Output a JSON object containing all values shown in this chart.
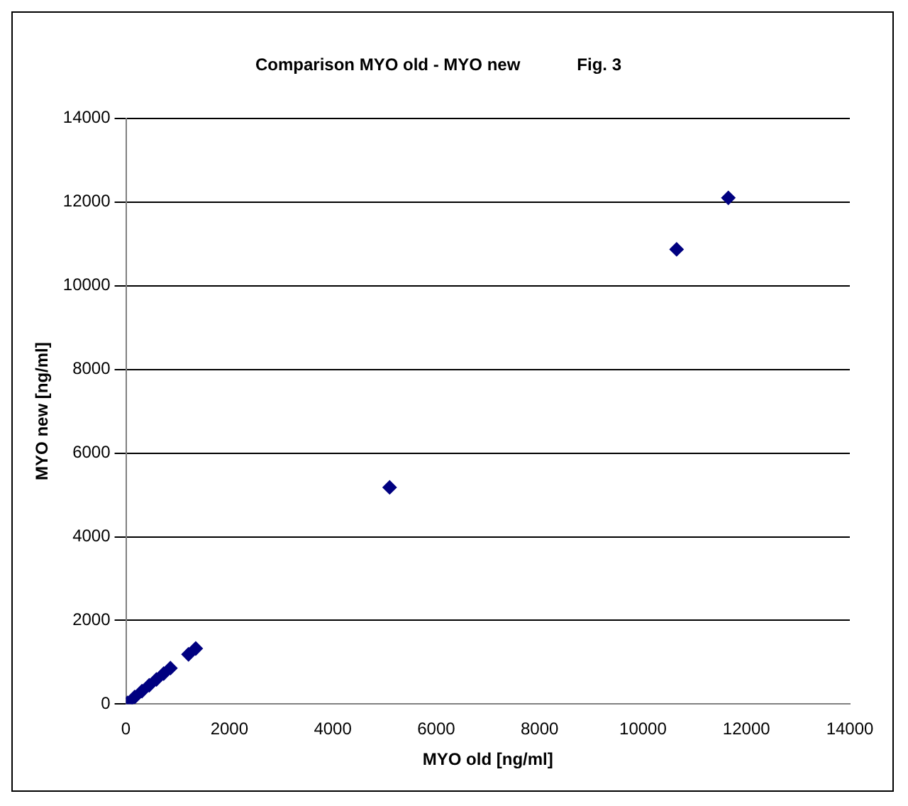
{
  "chart_data": {
    "type": "scatter",
    "title": "Comparison MYO old - MYO new            Fig. 3",
    "xlabel": "MYO old [ng/ml]",
    "ylabel": "MYO new [ng/ml]",
    "x": [
      30,
      170,
      310,
      450,
      590,
      730,
      860,
      1210,
      1350,
      5100,
      10650,
      11650
    ],
    "series": [
      {
        "color": "#000080",
        "values": [
          30,
          170,
          310,
          450,
          590,
          730,
          860,
          1190,
          1330,
          5180,
          10870,
          12100
        ]
      }
    ],
    "xlim": [
      0,
      14000
    ],
    "xticks": [
      0,
      2000,
      4000,
      6000,
      8000,
      10000,
      12000,
      14000
    ],
    "ylim": [
      0,
      14000
    ],
    "yticks": [
      0,
      2000,
      4000,
      6000,
      8000,
      10000,
      12000,
      14000
    ],
    "grid": "y",
    "legend": false,
    "marker": "diamond"
  }
}
